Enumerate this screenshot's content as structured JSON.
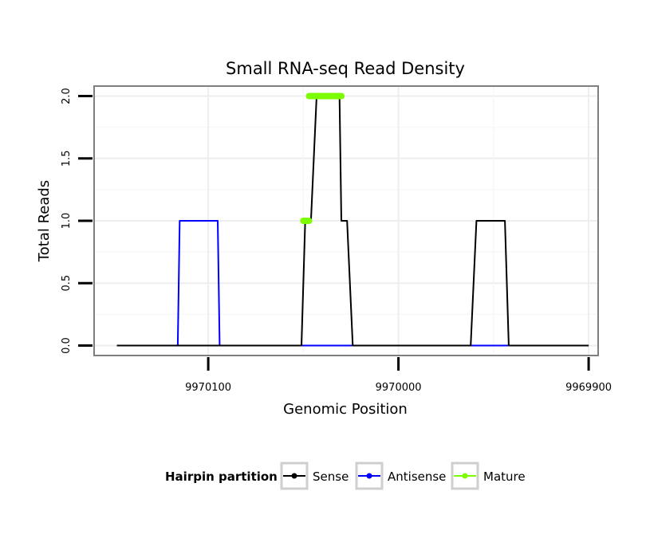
{
  "chart_data": {
    "type": "line",
    "title": "Small RNA-seq Read Density",
    "xlabel": "Genomic Position",
    "ylabel": "Total Reads",
    "x_reversed": true,
    "xlim": [
      9970160,
      9969895
    ],
    "ylim": [
      -0.08,
      2.08
    ],
    "x_ticks": [
      9970100,
      9970000,
      9969900
    ],
    "x_tick_labels": [
      "9970100",
      "9970000",
      "9969900"
    ],
    "y_ticks": [
      0,
      0.5,
      1,
      1.5,
      2
    ],
    "y_tick_labels": [
      "0.0",
      "0.5",
      "1.0",
      "1.5",
      "2.0"
    ],
    "grid": true,
    "legend": {
      "title": "Hairpin partition",
      "position": "bottom",
      "entries": [
        "Sense",
        "Antisense",
        "Mature"
      ]
    },
    "series": [
      {
        "name": "Sense",
        "color": "#000000",
        "x": [
          9970148,
          9970051,
          9970049,
          9970046,
          9970043,
          9970031,
          9970030,
          9970027,
          9970024,
          9969962,
          9969959,
          9969944,
          9969942,
          9969900
        ],
        "y": [
          0,
          0,
          1,
          1,
          2,
          2,
          1,
          1,
          0,
          0,
          1,
          1,
          0,
          0
        ]
      },
      {
        "name": "Antisense",
        "color": "#0000ff",
        "x": [
          9970148,
          9970116,
          9970115,
          9970095,
          9970094,
          9969900
        ],
        "y": [
          0,
          0,
          1,
          1,
          0,
          0
        ]
      },
      {
        "name": "Mature",
        "color": "#7cfc00",
        "segments": [
          {
            "x": [
              9970050,
              9970047
            ],
            "y": [
              1,
              1
            ]
          },
          {
            "x": [
              9970047,
              9970030
            ],
            "y": [
              2,
              2
            ]
          }
        ]
      }
    ]
  }
}
